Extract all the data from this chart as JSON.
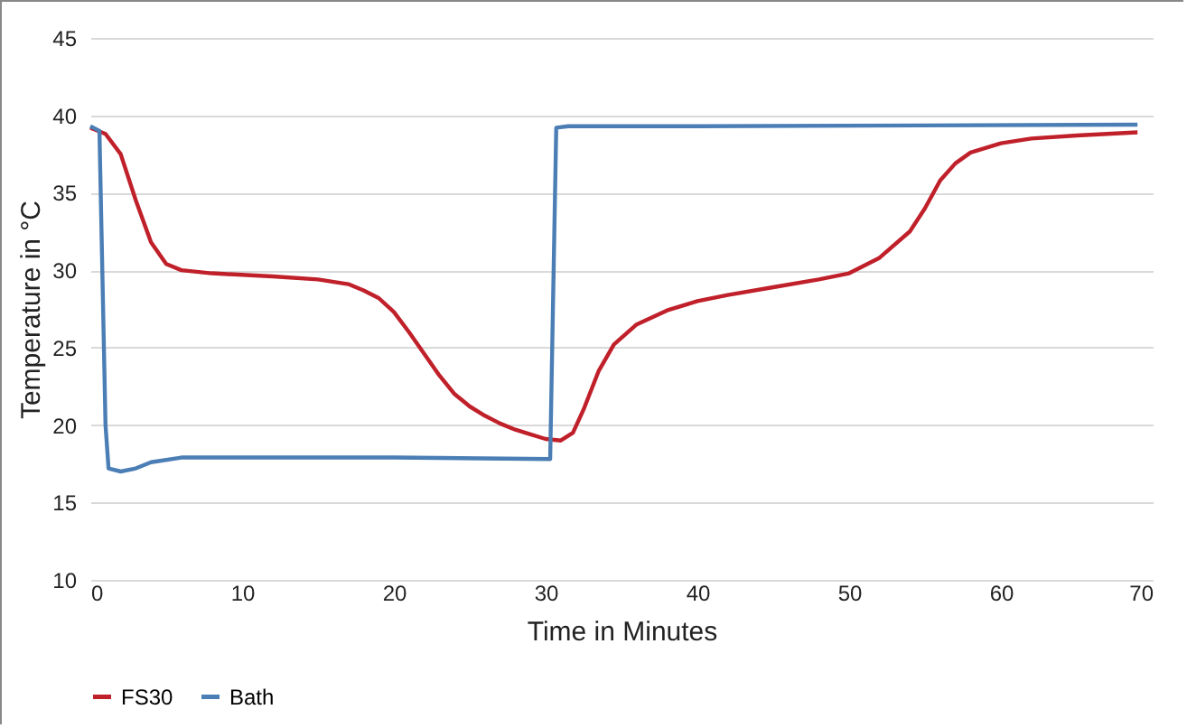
{
  "chart_data": {
    "type": "line",
    "xlabel": "Time in Minutes",
    "ylabel": "Temperature in °C",
    "xlim": [
      0,
      70
    ],
    "xticks": [
      0,
      10,
      20,
      30,
      40,
      50,
      60,
      70
    ],
    "ylim": [
      10,
      45
    ],
    "yticks": [
      10,
      15,
      20,
      25,
      30,
      35,
      40,
      45
    ],
    "grid": "y",
    "legend": "bottom",
    "marker": "none",
    "line_style": "solid",
    "series": [
      {
        "name": "FS30",
        "color": "#c0202a",
        "x": [
          0,
          1,
          2,
          3,
          4,
          5,
          6,
          8,
          10,
          12,
          15,
          17,
          18,
          19,
          20,
          21,
          22,
          23,
          24,
          25,
          26,
          27,
          28,
          29,
          30,
          31,
          31.8,
          32.5,
          33.5,
          34.5,
          36,
          38,
          40,
          42,
          45,
          48,
          50,
          52,
          54,
          55,
          56,
          57,
          58,
          60,
          62,
          65,
          69
        ],
        "values": [
          39.2,
          38.8,
          37.5,
          34.5,
          31.8,
          30.4,
          30,
          29.8,
          29.7,
          29.6,
          29.4,
          29.1,
          28.7,
          28.2,
          27.3,
          26,
          24.6,
          23.2,
          22,
          21.2,
          20.6,
          20.1,
          19.7,
          19.4,
          19.1,
          19,
          19.5,
          21,
          23.5,
          25.2,
          26.5,
          27.4,
          28,
          28.4,
          28.9,
          29.4,
          29.8,
          30.8,
          32.5,
          34,
          35.8,
          36.9,
          37.6,
          38.2,
          38.5,
          38.7,
          38.9
        ]
      },
      {
        "name": "Bath",
        "color": "#4a7eb5",
        "x": [
          0,
          0.6,
          1,
          1.2,
          2,
          3,
          4,
          6,
          10,
          20,
          30.3,
          30.7,
          31.5,
          40,
          69
        ],
        "values": [
          39.3,
          39,
          20,
          17.2,
          17,
          17.2,
          17.6,
          17.9,
          17.9,
          17.9,
          17.8,
          39.2,
          39.3,
          39.3,
          39.4
        ]
      }
    ]
  }
}
